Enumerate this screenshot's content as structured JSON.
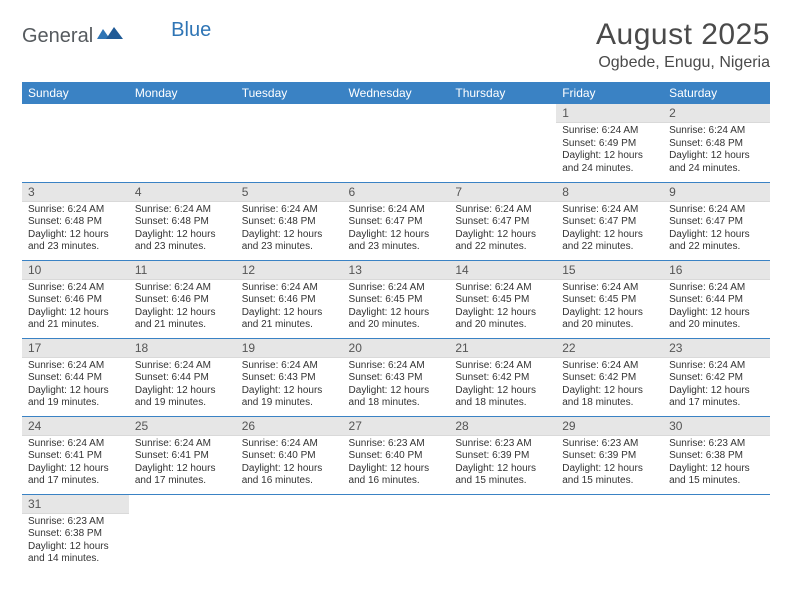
{
  "brand": {
    "part1": "General",
    "part2": "Blue"
  },
  "title": "August 2025",
  "location": "Ogbede, Enugu, Nigeria",
  "colors": {
    "header_bg": "#3a82c4",
    "header_text": "#ffffff",
    "daynum_bg": "#e6e6e6",
    "border": "#3a82c4",
    "text": "#333333",
    "title_text": "#4a4a4a",
    "logo_gray": "#555a5e",
    "logo_blue": "#2f75b5"
  },
  "fonts": {
    "title_size_pt": 22,
    "location_size_pt": 12,
    "header_size_pt": 9,
    "daynum_size_pt": 9,
    "body_size_pt": 7.5
  },
  "day_headers": [
    "Sunday",
    "Monday",
    "Tuesday",
    "Wednesday",
    "Thursday",
    "Friday",
    "Saturday"
  ],
  "weeks": [
    [
      null,
      null,
      null,
      null,
      null,
      {
        "num": "1",
        "sunrise": "Sunrise: 6:24 AM",
        "sunset": "Sunset: 6:49 PM",
        "daylight": "Daylight: 12 hours and 24 minutes."
      },
      {
        "num": "2",
        "sunrise": "Sunrise: 6:24 AM",
        "sunset": "Sunset: 6:48 PM",
        "daylight": "Daylight: 12 hours and 24 minutes."
      }
    ],
    [
      {
        "num": "3",
        "sunrise": "Sunrise: 6:24 AM",
        "sunset": "Sunset: 6:48 PM",
        "daylight": "Daylight: 12 hours and 23 minutes."
      },
      {
        "num": "4",
        "sunrise": "Sunrise: 6:24 AM",
        "sunset": "Sunset: 6:48 PM",
        "daylight": "Daylight: 12 hours and 23 minutes."
      },
      {
        "num": "5",
        "sunrise": "Sunrise: 6:24 AM",
        "sunset": "Sunset: 6:48 PM",
        "daylight": "Daylight: 12 hours and 23 minutes."
      },
      {
        "num": "6",
        "sunrise": "Sunrise: 6:24 AM",
        "sunset": "Sunset: 6:47 PM",
        "daylight": "Daylight: 12 hours and 23 minutes."
      },
      {
        "num": "7",
        "sunrise": "Sunrise: 6:24 AM",
        "sunset": "Sunset: 6:47 PM",
        "daylight": "Daylight: 12 hours and 22 minutes."
      },
      {
        "num": "8",
        "sunrise": "Sunrise: 6:24 AM",
        "sunset": "Sunset: 6:47 PM",
        "daylight": "Daylight: 12 hours and 22 minutes."
      },
      {
        "num": "9",
        "sunrise": "Sunrise: 6:24 AM",
        "sunset": "Sunset: 6:47 PM",
        "daylight": "Daylight: 12 hours and 22 minutes."
      }
    ],
    [
      {
        "num": "10",
        "sunrise": "Sunrise: 6:24 AM",
        "sunset": "Sunset: 6:46 PM",
        "daylight": "Daylight: 12 hours and 21 minutes."
      },
      {
        "num": "11",
        "sunrise": "Sunrise: 6:24 AM",
        "sunset": "Sunset: 6:46 PM",
        "daylight": "Daylight: 12 hours and 21 minutes."
      },
      {
        "num": "12",
        "sunrise": "Sunrise: 6:24 AM",
        "sunset": "Sunset: 6:46 PM",
        "daylight": "Daylight: 12 hours and 21 minutes."
      },
      {
        "num": "13",
        "sunrise": "Sunrise: 6:24 AM",
        "sunset": "Sunset: 6:45 PM",
        "daylight": "Daylight: 12 hours and 20 minutes."
      },
      {
        "num": "14",
        "sunrise": "Sunrise: 6:24 AM",
        "sunset": "Sunset: 6:45 PM",
        "daylight": "Daylight: 12 hours and 20 minutes."
      },
      {
        "num": "15",
        "sunrise": "Sunrise: 6:24 AM",
        "sunset": "Sunset: 6:45 PM",
        "daylight": "Daylight: 12 hours and 20 minutes."
      },
      {
        "num": "16",
        "sunrise": "Sunrise: 6:24 AM",
        "sunset": "Sunset: 6:44 PM",
        "daylight": "Daylight: 12 hours and 20 minutes."
      }
    ],
    [
      {
        "num": "17",
        "sunrise": "Sunrise: 6:24 AM",
        "sunset": "Sunset: 6:44 PM",
        "daylight": "Daylight: 12 hours and 19 minutes."
      },
      {
        "num": "18",
        "sunrise": "Sunrise: 6:24 AM",
        "sunset": "Sunset: 6:44 PM",
        "daylight": "Daylight: 12 hours and 19 minutes."
      },
      {
        "num": "19",
        "sunrise": "Sunrise: 6:24 AM",
        "sunset": "Sunset: 6:43 PM",
        "daylight": "Daylight: 12 hours and 19 minutes."
      },
      {
        "num": "20",
        "sunrise": "Sunrise: 6:24 AM",
        "sunset": "Sunset: 6:43 PM",
        "daylight": "Daylight: 12 hours and 18 minutes."
      },
      {
        "num": "21",
        "sunrise": "Sunrise: 6:24 AM",
        "sunset": "Sunset: 6:42 PM",
        "daylight": "Daylight: 12 hours and 18 minutes."
      },
      {
        "num": "22",
        "sunrise": "Sunrise: 6:24 AM",
        "sunset": "Sunset: 6:42 PM",
        "daylight": "Daylight: 12 hours and 18 minutes."
      },
      {
        "num": "23",
        "sunrise": "Sunrise: 6:24 AM",
        "sunset": "Sunset: 6:42 PM",
        "daylight": "Daylight: 12 hours and 17 minutes."
      }
    ],
    [
      {
        "num": "24",
        "sunrise": "Sunrise: 6:24 AM",
        "sunset": "Sunset: 6:41 PM",
        "daylight": "Daylight: 12 hours and 17 minutes."
      },
      {
        "num": "25",
        "sunrise": "Sunrise: 6:24 AM",
        "sunset": "Sunset: 6:41 PM",
        "daylight": "Daylight: 12 hours and 17 minutes."
      },
      {
        "num": "26",
        "sunrise": "Sunrise: 6:24 AM",
        "sunset": "Sunset: 6:40 PM",
        "daylight": "Daylight: 12 hours and 16 minutes."
      },
      {
        "num": "27",
        "sunrise": "Sunrise: 6:23 AM",
        "sunset": "Sunset: 6:40 PM",
        "daylight": "Daylight: 12 hours and 16 minutes."
      },
      {
        "num": "28",
        "sunrise": "Sunrise: 6:23 AM",
        "sunset": "Sunset: 6:39 PM",
        "daylight": "Daylight: 12 hours and 15 minutes."
      },
      {
        "num": "29",
        "sunrise": "Sunrise: 6:23 AM",
        "sunset": "Sunset: 6:39 PM",
        "daylight": "Daylight: 12 hours and 15 minutes."
      },
      {
        "num": "30",
        "sunrise": "Sunrise: 6:23 AM",
        "sunset": "Sunset: 6:38 PM",
        "daylight": "Daylight: 12 hours and 15 minutes."
      }
    ],
    [
      {
        "num": "31",
        "sunrise": "Sunrise: 6:23 AM",
        "sunset": "Sunset: 6:38 PM",
        "daylight": "Daylight: 12 hours and 14 minutes."
      },
      null,
      null,
      null,
      null,
      null,
      null
    ]
  ]
}
